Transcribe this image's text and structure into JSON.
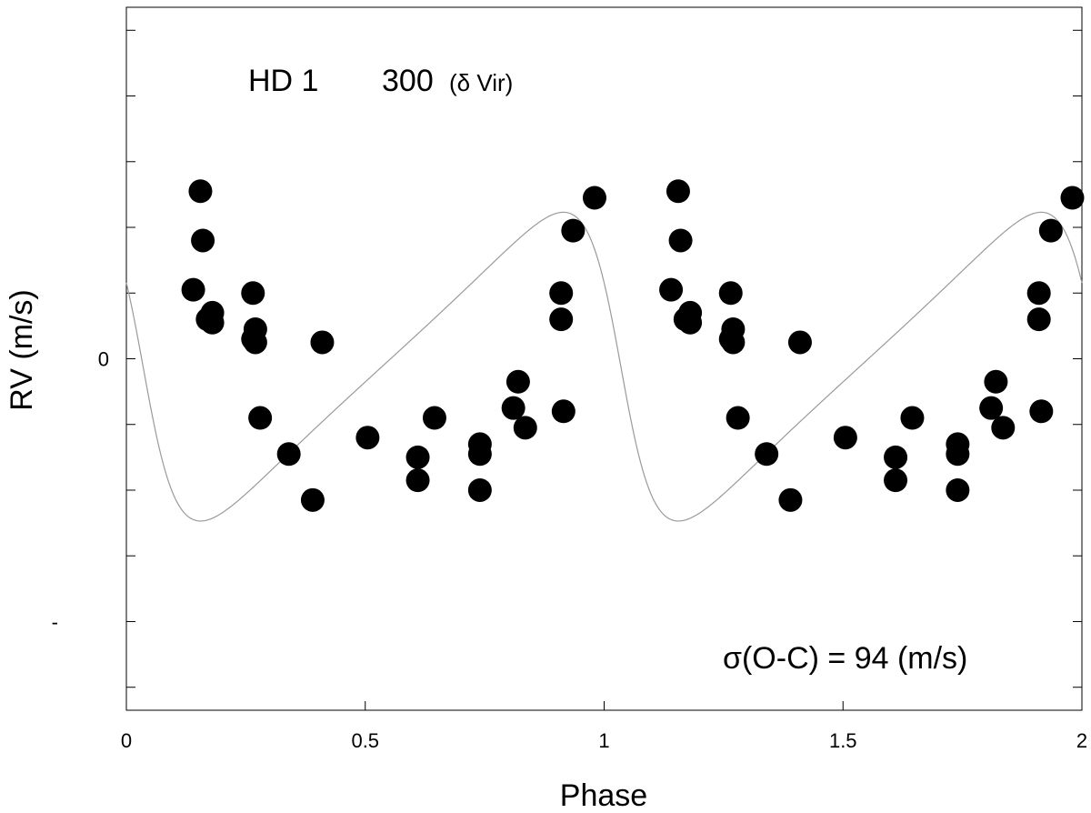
{
  "chart_data": {
    "type": "scatter",
    "title": "HD 1",
    "title_number": "300",
    "title_alias": "(δ Vir)",
    "xlabel": "Phase",
    "ylabel": "RV (m/s)",
    "annotation": "σ(O-C) = 94 (m/s)",
    "xlim": [
      0,
      2
    ],
    "x_ticks": [
      "0",
      "0.5",
      "1",
      "1.5",
      "2"
    ],
    "y_tick_labels": [
      {
        "value": 0,
        "label": "0"
      },
      {
        "value": -400,
        "label": "-"
      }
    ],
    "ylim": [
      -535,
      535
    ],
    "y_tick_step": 100,
    "grid": false,
    "observations": {
      "name": "observations",
      "x": [
        0.14,
        0.155,
        0.16,
        0.17,
        0.18,
        0.18,
        0.265,
        0.27,
        0.27,
        0.265,
        0.28,
        0.34,
        0.39,
        0.41,
        0.505,
        0.61,
        0.61,
        0.645,
        0.74,
        0.74,
        0.74,
        0.81,
        0.82,
        0.835,
        0.91,
        0.91,
        0.915,
        0.935,
        0.98
      ],
      "y": [
        105,
        255,
        180,
        60,
        55,
        70,
        100,
        45,
        25,
        30,
        -90,
        -145,
        -215,
        25,
        -120,
        -150,
        -185,
        -90,
        -130,
        -145,
        -200,
        -75,
        -35,
        -105,
        100,
        60,
        -80,
        195,
        245
      ],
      "marker_color": "#000000"
    },
    "fit": {
      "name": "orbit fit",
      "period_phase": 1,
      "K": 235,
      "e": 0.42,
      "omega_deg": 90,
      "phase_periastron": 0.035,
      "v_offset": -12,
      "line_color": "#9a9a9a"
    }
  }
}
